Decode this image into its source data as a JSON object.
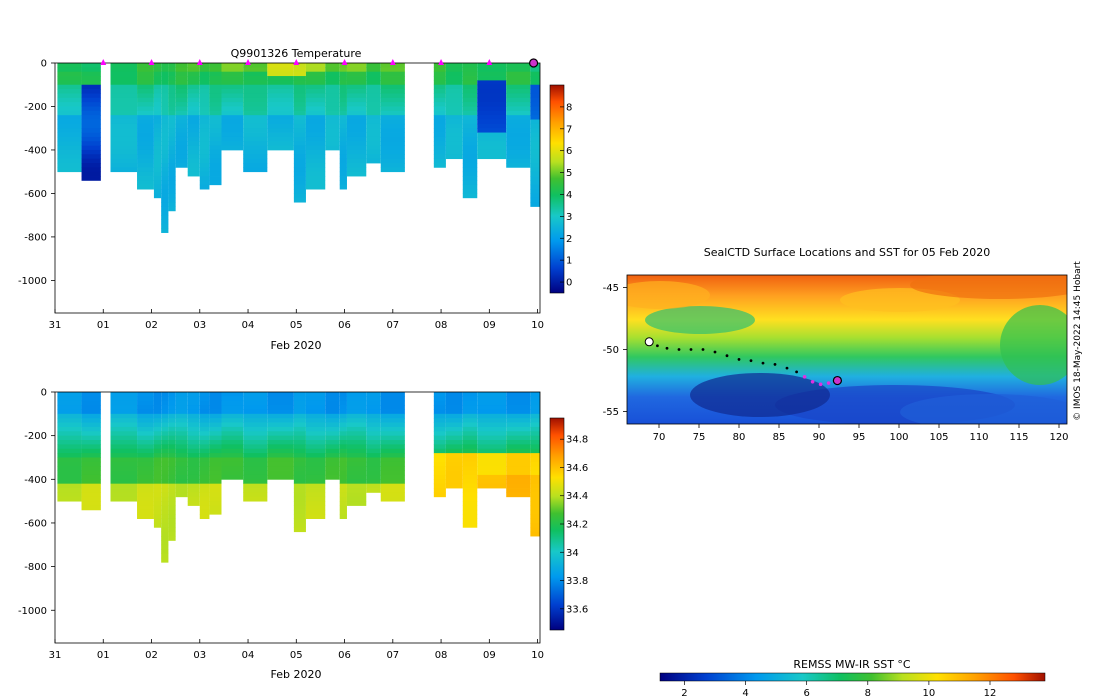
{
  "chart_data": [
    {
      "type": "heatmap",
      "panel": "temperature-section",
      "title": "Q9901326  Temperature",
      "xlabel": "Feb 2020",
      "ylabel": "",
      "x_tick_labels": [
        "31",
        "01",
        "02",
        "03",
        "04",
        "05",
        "06",
        "07",
        "08",
        "09",
        "10"
      ],
      "x_days": [
        0,
        1,
        2,
        3,
        4,
        5,
        6,
        7,
        8,
        9,
        10
      ],
      "xlim_days": [
        0,
        10.05
      ],
      "y_ticks": [
        0,
        -200,
        -400,
        -600,
        -800,
        -1000
      ],
      "y_tick_labels": [
        "0",
        "-200",
        "-400",
        "-600",
        "-800",
        "-1000"
      ],
      "ylim": [
        -1150,
        0
      ],
      "colorbar_ticks": [
        0,
        1,
        2,
        3,
        4,
        5,
        6,
        7,
        8
      ],
      "colorbar_tick_labels": [
        "0",
        "1",
        "2",
        "3",
        "4",
        "5",
        "6",
        "7",
        "8"
      ],
      "colorbar_range": [
        -0.5,
        9
      ],
      "profile_markers_days": [
        1,
        2,
        3,
        4,
        5,
        6,
        7,
        8,
        9
      ],
      "current_marker_day": 10
    },
    {
      "type": "heatmap",
      "panel": "salinity-section",
      "title": "",
      "xlabel": "Feb 2020",
      "x_tick_labels": [
        "31",
        "01",
        "02",
        "03",
        "04",
        "05",
        "06",
        "07",
        "08",
        "09",
        "10"
      ],
      "y_ticks": [
        0,
        -200,
        -400,
        -600,
        -800,
        -1000
      ],
      "y_tick_labels": [
        "0",
        "-200",
        "-400",
        "-600",
        "-800",
        "-1000"
      ],
      "ylim": [
        -1150,
        0
      ],
      "colorbar_ticks": [
        33.6,
        33.8,
        34,
        34.2,
        34.4,
        34.6,
        34.8
      ],
      "colorbar_tick_labels": [
        "33.6",
        "33.8",
        "34",
        "34.2",
        "34.4",
        "34.6",
        "34.8"
      ],
      "colorbar_range": [
        33.45,
        34.95
      ]
    },
    {
      "type": "heatmap",
      "panel": "sst-map",
      "title": "SealCTD Surface Locations and SST for 05 Feb 2020",
      "x_ticks": [
        70,
        75,
        80,
        85,
        90,
        95,
        100,
        105,
        110,
        115,
        120
      ],
      "x_tick_labels": [
        "70",
        "75",
        "80",
        "85",
        "90",
        "95",
        "100",
        "105",
        "110",
        "115",
        "120"
      ],
      "xlim": [
        66,
        121
      ],
      "y_ticks": [
        -45,
        -50,
        -55
      ],
      "y_tick_labels": [
        "-45",
        "-50",
        "-55"
      ],
      "ylim": [
        -56,
        -44
      ],
      "track": [
        [
          68.9,
          -49.3
        ],
        [
          69.8,
          -49.7
        ],
        [
          71,
          -49.9
        ],
        [
          72.5,
          -50
        ],
        [
          74,
          -50
        ],
        [
          75.5,
          -50
        ],
        [
          77,
          -50.2
        ],
        [
          78.5,
          -50.5
        ],
        [
          80,
          -50.8
        ],
        [
          81.5,
          -50.9
        ],
        [
          83,
          -51.1
        ],
        [
          84.5,
          -51.2
        ],
        [
          86,
          -51.5
        ],
        [
          87.2,
          -51.8
        ],
        [
          88.2,
          -52.2
        ],
        [
          89.2,
          -52.6
        ],
        [
          90.2,
          -52.8
        ],
        [
          91.2,
          -52.7
        ],
        [
          92.3,
          -52.5
        ]
      ],
      "track_highlight_start_index": 14,
      "current_position": [
        92.3,
        -52.5
      ],
      "colorbar_title": "REMSS MW-IR SST °C",
      "colorbar_ticks": [
        2,
        4,
        6,
        8,
        10,
        12
      ],
      "colorbar_tick_labels": [
        "2",
        "4",
        "6",
        "8",
        "10",
        "12"
      ],
      "colorbar_range": [
        1.2,
        13.8
      ]
    }
  ],
  "credit": "© IMOS 18-May-2022 14:45 Hobart"
}
